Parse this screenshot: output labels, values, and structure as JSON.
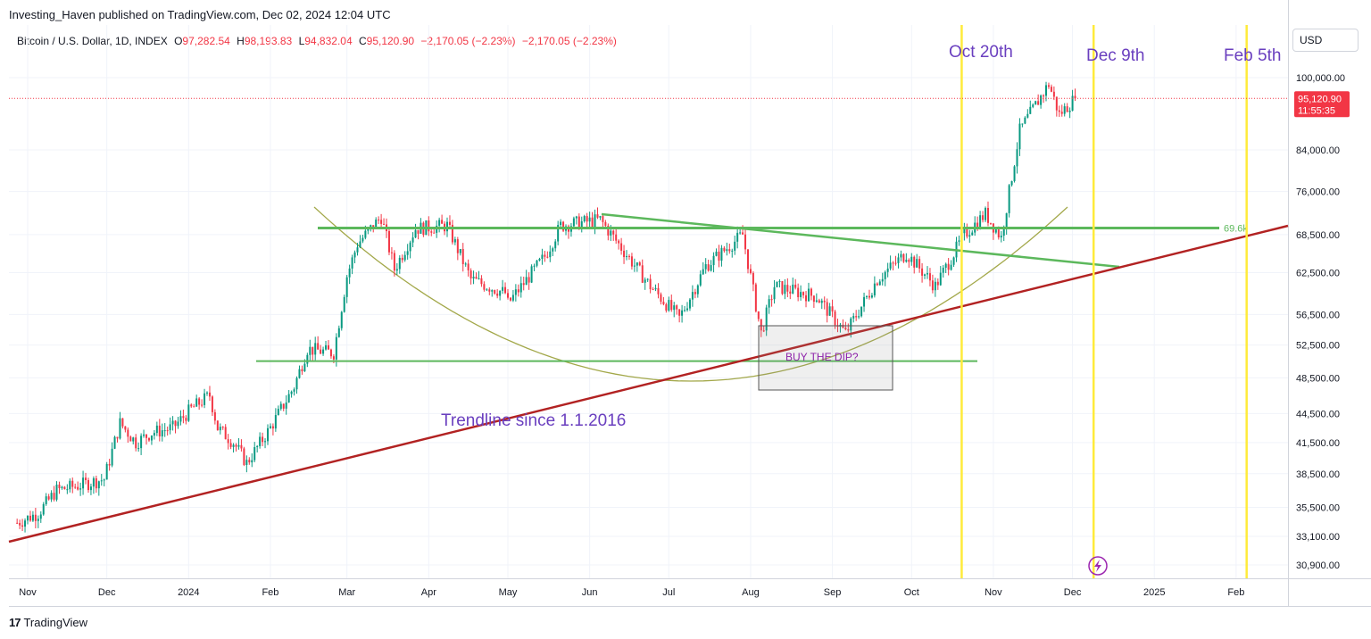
{
  "header": {
    "publisher_line": "Investing_Haven published on TradingView.com, Dec 02, 2024 12:04 UTC"
  },
  "symbol": {
    "name": "Bitcoin / U.S. Dollar, 1D, INDEX",
    "open_label": "O",
    "open": "97,282.54",
    "high_label": "H",
    "high": "98,193.83",
    "low_label": "L",
    "low": "94,832.04",
    "close_label": "C",
    "close": "95,120.90",
    "change": "−2,170.05 (−2.23%)",
    "change2": "−2,170.05 (−2.23%)"
  },
  "currency": "USD",
  "price_badge": {
    "price": "95,120.90",
    "countdown": "11:55:35"
  },
  "footer": {
    "brand": "TradingView"
  },
  "colors": {
    "up": "#089981",
    "down": "#f23645",
    "green_line": "#5cb85c",
    "trend_line": "#b22222",
    "yellow": "#ffeb3b",
    "arc": "#a3a84a",
    "annotation": "#6a3fbf"
  },
  "chart_data": {
    "type": "candlestick",
    "scale": "log",
    "ylim": [
      30000,
      110000
    ],
    "y_ticks": [
      100000,
      84000,
      76000,
      68500,
      62500,
      56500,
      52500,
      48500,
      44500,
      41500,
      38500,
      35500,
      33100,
      30900
    ],
    "y_tick_labels": [
      "100,000.00",
      "84,000.00",
      "76,000.00",
      "68,500.00",
      "62,500.00",
      "56,500.00",
      "52,500.00",
      "48,500.00",
      "44,500.00",
      "41,500.00",
      "38,500.00",
      "35,500.00",
      "33,100.00",
      "30,900.00"
    ],
    "x_ticks": [
      "2023-11-01",
      "2023-12-01",
      "2024-01-01",
      "2024-02-01",
      "2024-03-01",
      "2024-04-01",
      "2024-05-01",
      "2024-06-01",
      "2024-07-01",
      "2024-08-01",
      "2024-09-01",
      "2024-10-01",
      "2024-11-01",
      "2024-12-01",
      "2025-01-01",
      "2025-02-01"
    ],
    "x_tick_labels": [
      "Nov",
      "Dec",
      "2024",
      "Feb",
      "Mar",
      "Apr",
      "May",
      "Jun",
      "Jul",
      "Aug",
      "Sep",
      "Oct",
      "Nov",
      "Dec",
      "2025",
      "Feb"
    ],
    "series_closes": [
      [
        "2023-10-28",
        34200
      ],
      [
        "2023-11-05",
        35000
      ],
      [
        "2023-11-12",
        37000
      ],
      [
        "2023-11-20",
        37400
      ],
      [
        "2023-11-30",
        38000
      ],
      [
        "2023-12-06",
        43500
      ],
      [
        "2023-12-12",
        41500
      ],
      [
        "2023-12-18",
        42500
      ],
      [
        "2023-12-26",
        43000
      ],
      [
        "2024-01-02",
        45000
      ],
      [
        "2024-01-09",
        46500
      ],
      [
        "2024-01-12",
        43000
      ],
      [
        "2024-01-18",
        41500
      ],
      [
        "2024-01-23",
        39500
      ],
      [
        "2024-02-01",
        43000
      ],
      [
        "2024-02-10",
        47500
      ],
      [
        "2024-02-15",
        52000
      ],
      [
        "2024-02-25",
        51500
      ],
      [
        "2024-03-01",
        62000
      ],
      [
        "2024-03-05",
        67000
      ],
      [
        "2024-03-14",
        71500
      ],
      [
        "2024-03-19",
        63000
      ],
      [
        "2024-03-27",
        69500
      ],
      [
        "2024-04-08",
        70000
      ],
      [
        "2024-04-17",
        61500
      ],
      [
        "2024-04-30",
        59500
      ],
      [
        "2024-05-01",
        58000
      ],
      [
        "2024-05-15",
        65000
      ],
      [
        "2024-05-21",
        70000
      ],
      [
        "2024-06-05",
        71000
      ],
      [
        "2024-06-24",
        60500
      ],
      [
        "2024-07-05",
        56000
      ],
      [
        "2024-07-15",
        63500
      ],
      [
        "2024-07-29",
        68500
      ],
      [
        "2024-08-05",
        54000
      ],
      [
        "2024-08-10",
        60500
      ],
      [
        "2024-08-26",
        59000
      ],
      [
        "2024-09-06",
        54000
      ],
      [
        "2024-09-18",
        61500
      ],
      [
        "2024-09-29",
        65500
      ],
      [
        "2024-10-10",
        60500
      ],
      [
        "2024-10-21",
        68500
      ],
      [
        "2024-10-29",
        72000
      ],
      [
        "2024-11-04",
        68000
      ],
      [
        "2024-11-11",
        88000
      ],
      [
        "2024-11-22",
        98500
      ],
      [
        "2024-11-26",
        91500
      ],
      [
        "2024-12-02",
        95120.9
      ]
    ],
    "last_price": 95120.9
  },
  "annotations": {
    "oct20": "Oct 20th",
    "dec9": "Dec 9th",
    "feb5": "Feb 5th",
    "trendline": "Trendline since 1.1.2016",
    "buy_dip": "BUY THE DIP?",
    "level_label": "69.6k"
  }
}
